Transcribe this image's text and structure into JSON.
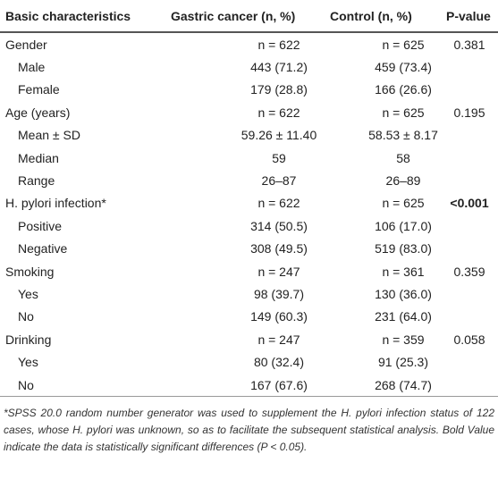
{
  "table": {
    "header": [
      "Basic characteristics",
      "Gastric cancer (n, %)",
      "Control (n, %)",
      "P-value"
    ],
    "rows": [
      [
        "Gender",
        "n = 622",
        "n = 625",
        "0.381"
      ],
      [
        "Male",
        "443 (71.2)",
        "459 (73.4)",
        ""
      ],
      [
        "Female",
        "179 (28.8)",
        "166 (26.6)",
        ""
      ],
      [
        "Age (years)",
        "n = 622",
        "n = 625",
        "0.195"
      ],
      [
        "Mean ± SD",
        "59.26 ± 11.40",
        "58.53 ± 8.17",
        ""
      ],
      [
        "Median",
        "59",
        "58",
        ""
      ],
      [
        "Range",
        "26–87",
        "26–89",
        ""
      ],
      [
        "H. pylori infection*",
        "n = 622",
        "n = 625",
        "<0.001"
      ],
      [
        "Positive",
        "314 (50.5)",
        "106 (17.0)",
        ""
      ],
      [
        "Negative",
        "308 (49.5)",
        "519 (83.0)",
        ""
      ],
      [
        "Smoking",
        "n = 247",
        "n = 361",
        "0.359"
      ],
      [
        "Yes",
        "98 (39.7)",
        "130 (36.0)",
        ""
      ],
      [
        "No",
        "149 (60.3)",
        "231 (64.0)",
        ""
      ],
      [
        "Drinking",
        "n = 247",
        "n = 359",
        "0.058"
      ],
      [
        "Yes",
        "80 (32.4)",
        "91 (25.3)",
        ""
      ],
      [
        "No",
        "167 (67.6)",
        "268 (74.7)",
        ""
      ]
    ]
  },
  "footnote": "*SPSS 20.0 random number generator was used to supplement the H. pylori infection status of 122 cases, whose H. pylori was unknown, so as to facilitate the subsequent statistical analysis. Bold Value indicate the data is statistically significant differences (P < 0.05)."
}
